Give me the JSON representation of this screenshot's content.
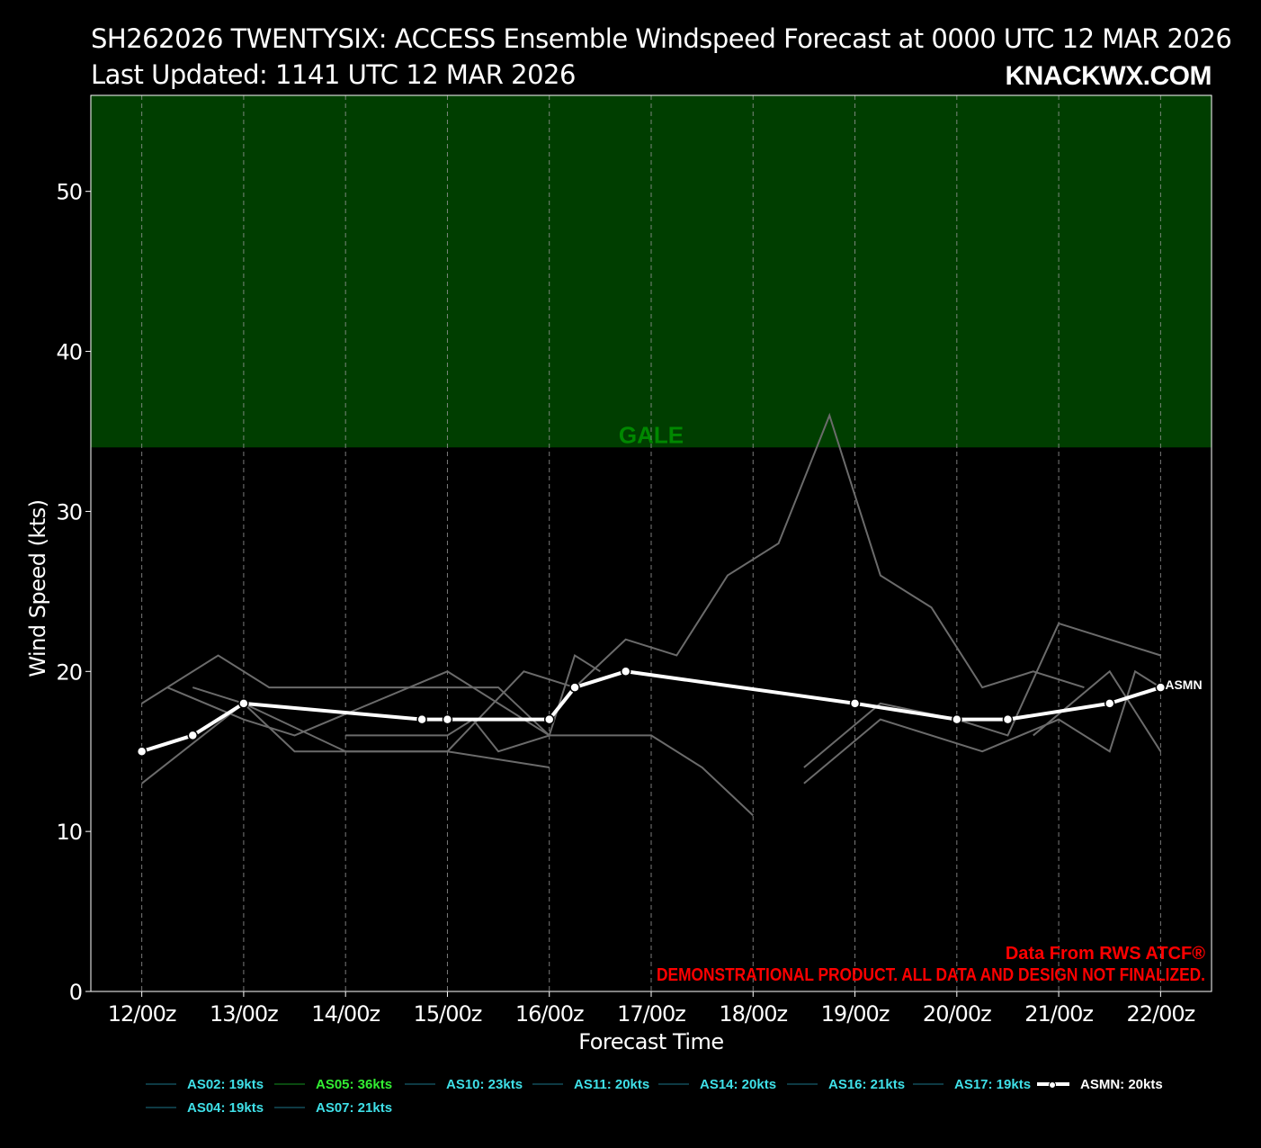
{
  "header": {
    "title_line1": "SH262026 TWENTYSIX: ACCESS Ensemble Windspeed Forecast at 0000 UTC 12 MAR 2026",
    "title_line2": "Last Updated: 1141 UTC 12 MAR 2026",
    "brand": "KNACKWX.COM"
  },
  "footer": {
    "source": "Data From RWS ATCF®",
    "disclaimer": "DEMONSTRATIONAL PRODUCT. ALL DATA AND DESIGN NOT FINALIZED."
  },
  "colors": {
    "background": "#000000",
    "gale_band": "#003e00",
    "gale_label": "#008800",
    "member_line": "#6b6b6b",
    "mean_line": "#ffffff",
    "legend_cyan": "#3fe0e8",
    "legend_green": "#33ee33",
    "footer_red": "#ff0000"
  },
  "chart_data": {
    "type": "line",
    "title": "SH262026 TWENTYSIX: ACCESS Ensemble Windspeed Forecast at 0000 UTC 12 MAR 2026",
    "xlabel": "Forecast Time",
    "ylabel": "Wind Speed (kts)",
    "x_ticks": [
      "12/00z",
      "13/00z",
      "14/00z",
      "15/00z",
      "16/00z",
      "17/00z",
      "18/00z",
      "19/00z",
      "20/00z",
      "21/00z",
      "22/00z"
    ],
    "xlim": [
      -0.5,
      10.5
    ],
    "ylim": [
      0,
      56
    ],
    "y_ticks": [
      0,
      10,
      20,
      30,
      40,
      50
    ],
    "grid": "vertical dashed",
    "bands": [
      {
        "label": "GALE",
        "from": 34,
        "to": 56
      }
    ],
    "members": [
      {
        "points": [
          [
            0,
            13
          ],
          [
            1,
            18
          ],
          [
            2,
            15
          ],
          [
            3,
            15
          ],
          [
            4,
            14
          ]
        ]
      },
      {
        "points": [
          [
            0.25,
            19
          ],
          [
            1,
            17
          ],
          [
            1.5,
            16
          ],
          [
            3,
            20
          ],
          [
            3.5,
            18
          ],
          [
            4,
            16
          ],
          [
            5,
            16
          ],
          [
            5.5,
            14
          ],
          [
            6,
            11
          ]
        ]
      },
      {
        "points": [
          [
            0,
            18
          ],
          [
            0.75,
            21
          ],
          [
            1.25,
            19
          ],
          [
            3.5,
            19
          ],
          [
            4,
            16
          ]
        ]
      },
      {
        "points": [
          [
            2,
            16
          ],
          [
            3,
            16
          ],
          [
            3.25,
            17
          ],
          [
            3.5,
            15
          ],
          [
            4,
            16
          ],
          [
            4.25,
            21
          ],
          [
            4.5,
            20
          ]
        ]
      },
      {
        "points": [
          [
            0.5,
            19
          ],
          [
            1,
            18
          ],
          [
            1.5,
            15
          ],
          [
            3,
            15
          ],
          [
            3.75,
            20
          ],
          [
            4.25,
            19
          ],
          [
            4.75,
            22
          ],
          [
            5.25,
            21
          ],
          [
            5.75,
            26
          ],
          [
            6.25,
            28
          ],
          [
            6.75,
            36
          ],
          [
            7,
            31
          ],
          [
            7.25,
            26
          ],
          [
            7.75,
            24
          ],
          [
            8.25,
            19
          ],
          [
            8.75,
            20
          ],
          [
            9.25,
            19
          ]
        ]
      },
      {
        "points": [
          [
            6.5,
            14
          ],
          [
            7.25,
            18
          ],
          [
            8,
            17
          ],
          [
            8.5,
            16
          ],
          [
            9,
            23
          ],
          [
            10,
            21
          ]
        ]
      },
      {
        "points": [
          [
            6.5,
            13
          ],
          [
            7.25,
            17
          ],
          [
            8.25,
            15
          ],
          [
            9,
            17
          ],
          [
            9.5,
            15
          ],
          [
            9.75,
            20
          ],
          [
            10,
            19
          ]
        ]
      },
      {
        "points": [
          [
            8.75,
            16
          ],
          [
            9.5,
            20
          ],
          [
            10,
            15
          ]
        ]
      }
    ],
    "mean": {
      "name": "ASMN",
      "label": "ASMN",
      "points": [
        [
          0,
          15
        ],
        [
          0.5,
          16
        ],
        [
          1,
          18
        ],
        [
          2.75,
          17
        ],
        [
          3,
          17
        ],
        [
          4,
          17
        ],
        [
          4.25,
          19
        ],
        [
          4.75,
          20
        ],
        [
          7,
          18
        ],
        [
          8,
          17
        ],
        [
          8.5,
          17
        ],
        [
          9.5,
          18
        ],
        [
          10,
          19
        ]
      ]
    },
    "legend": [
      {
        "label": "AS02: 19kts",
        "kind": "member",
        "line": "#0e3a44",
        "text": "#3fe0e8"
      },
      {
        "label": "AS05: 36kts",
        "kind": "member",
        "line": "#0a4a10",
        "text": "#33ee33"
      },
      {
        "label": "AS10: 23kts",
        "kind": "member",
        "line": "#0e3a44",
        "text": "#3fe0e8"
      },
      {
        "label": "AS11: 20kts",
        "kind": "member",
        "line": "#0e3a44",
        "text": "#3fe0e8"
      },
      {
        "label": "AS14: 20kts",
        "kind": "member",
        "line": "#0e3a44",
        "text": "#3fe0e8"
      },
      {
        "label": "AS16: 21kts",
        "kind": "member",
        "line": "#0e3a44",
        "text": "#3fe0e8"
      },
      {
        "label": "AS17: 19kts",
        "kind": "member",
        "line": "#0e3a44",
        "text": "#3fe0e8"
      },
      {
        "label": "ASMN: 20kts",
        "kind": "mean",
        "line": "#ffffff",
        "text": "#ffffff"
      },
      {
        "label": "AS04: 19kts",
        "kind": "member",
        "line": "#0e3a44",
        "text": "#3fe0e8"
      },
      {
        "label": "AS07: 21kts",
        "kind": "member",
        "line": "#0e3a44",
        "text": "#3fe0e8"
      }
    ]
  }
}
